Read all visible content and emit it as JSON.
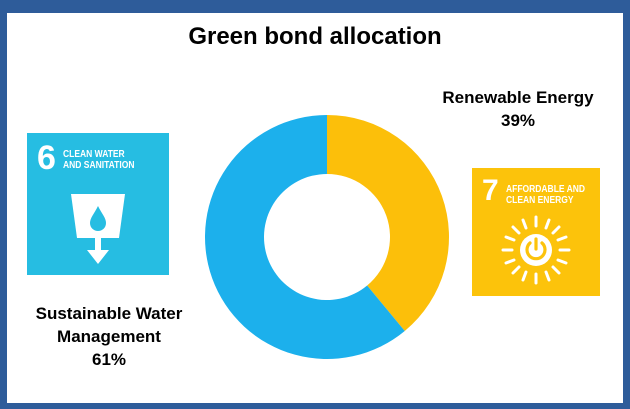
{
  "chart_data": {
    "type": "pie",
    "donut": true,
    "title": "Green bond allocation",
    "categories": [
      "Renewable Energy",
      "Sustainable Water Management"
    ],
    "values": [
      39,
      61
    ],
    "value_labels": [
      "39%",
      "61%"
    ],
    "colors": [
      "#fcbf0a",
      "#1cb0ec"
    ],
    "start_angle_deg": 0,
    "direction": "clockwise"
  },
  "labels": {
    "renewable": {
      "name": "Renewable Energy",
      "pct": "39%"
    },
    "water": {
      "name_line1": "Sustainable Water",
      "name_line2": "Management",
      "pct": "61%"
    }
  },
  "icons": {
    "sdg6": {
      "number": "6",
      "line1": "CLEAN WATER",
      "line2": "AND SANITATION",
      "icon": "water-glass-icon",
      "color": "#26bde2"
    },
    "sdg7": {
      "number": "7",
      "line1": "AFFORDABLE AND",
      "line2": "CLEAN ENERGY",
      "icon": "power-sun-icon",
      "color": "#fcc30b"
    }
  }
}
